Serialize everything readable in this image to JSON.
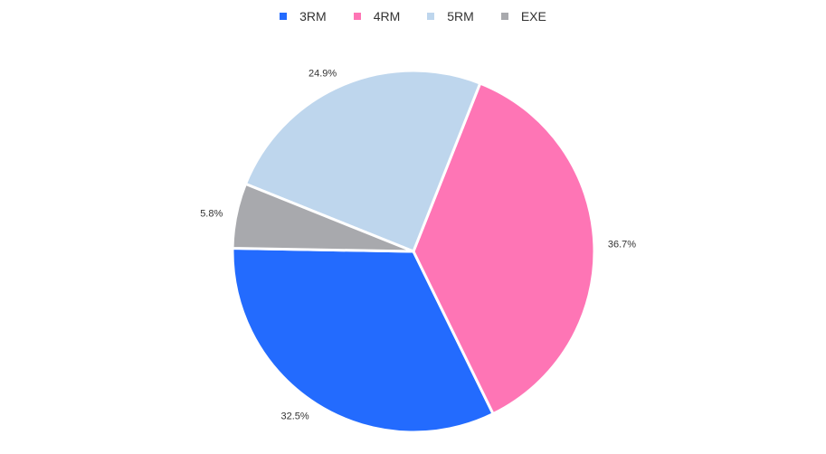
{
  "chart_data": {
    "type": "pie",
    "title": "",
    "legend_position": "top",
    "start_angle_deg": 179,
    "direction": "counterclockwise",
    "series": [
      {
        "name": "",
        "slices": [
          {
            "label": "3RM",
            "value": 32.5,
            "percent_label": "32.5%",
            "color": "#236bfe"
          },
          {
            "label": "4RM",
            "value": 36.7,
            "percent_label": "36.7%",
            "color": "#fe75b5"
          },
          {
            "label": "5RM",
            "value": 24.9,
            "percent_label": "24.9%",
            "color": "#bed6ed"
          },
          {
            "label": "EXE",
            "value": 5.8,
            "percent_label": "5.8%",
            "color": "#a8a9ad"
          }
        ]
      }
    ]
  }
}
